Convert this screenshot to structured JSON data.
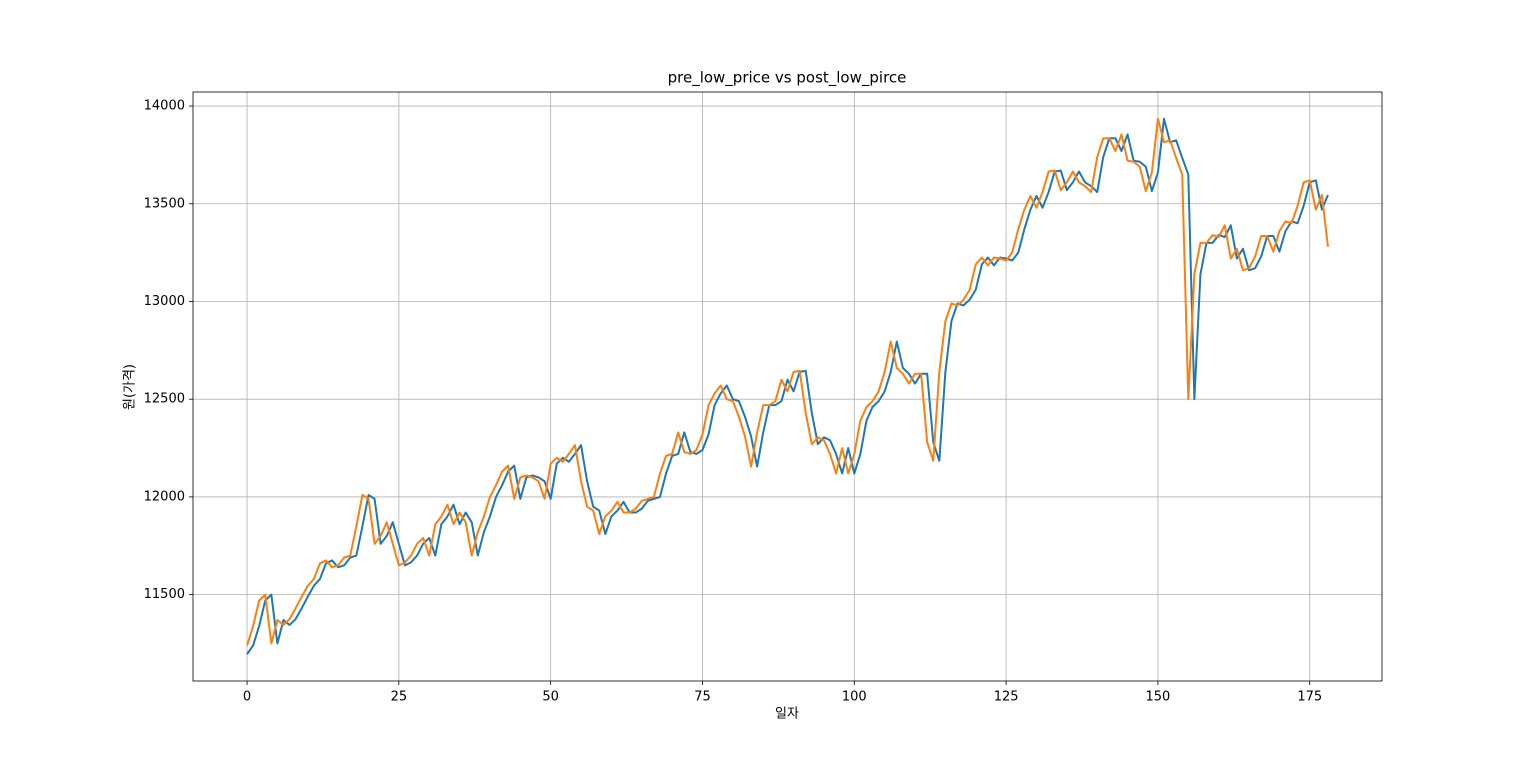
{
  "chart_data": {
    "type": "line",
    "title": "pre_low_price vs post_low_pirce",
    "x_label": "일자",
    "y_label": "원(가격)",
    "x": [
      0,
      1,
      2,
      3,
      4,
      5,
      6,
      7,
      8,
      9,
      10,
      11,
      12,
      13,
      14,
      15,
      16,
      17,
      18,
      19,
      20,
      21,
      22,
      23,
      24,
      25,
      26,
      27,
      28,
      29,
      30,
      31,
      32,
      33,
      34,
      35,
      36,
      37,
      38,
      39,
      40,
      41,
      42,
      43,
      44,
      45,
      46,
      47,
      48,
      49,
      50,
      51,
      52,
      53,
      54,
      55,
      56,
      57,
      58,
      59,
      60,
      61,
      62,
      63,
      64,
      65,
      66,
      67,
      68,
      69,
      70,
      71,
      72,
      73,
      74,
      75,
      76,
      77,
      78,
      79,
      80,
      81,
      82,
      83,
      84,
      85,
      86,
      87,
      88,
      89,
      90,
      91,
      92,
      93,
      94,
      95,
      96,
      97,
      98,
      99,
      100,
      101,
      102,
      103,
      104,
      105,
      106,
      107,
      108,
      109,
      110,
      111,
      112,
      113,
      114,
      115,
      116,
      117,
      118,
      119,
      120,
      121,
      122,
      123,
      124,
      125,
      126,
      127,
      128,
      129,
      130,
      131,
      132,
      133,
      134,
      135,
      136,
      137,
      138,
      139,
      140,
      141,
      142,
      143,
      144,
      145,
      146,
      147,
      148,
      149,
      150,
      151,
      152,
      153,
      154,
      155,
      156,
      157,
      158,
      159,
      160,
      161,
      162,
      163,
      164,
      165,
      166,
      167,
      168,
      169,
      170,
      171,
      172,
      173,
      174,
      175,
      176,
      177,
      178
    ],
    "series": [
      {
        "color": "#1f77b4",
        "values": [
          11195,
          11240,
          11340,
          11470,
          11500,
          11250,
          11370,
          11345,
          11375,
          11430,
          11490,
          11545,
          11580,
          11660,
          11675,
          11640,
          11650,
          11690,
          11700,
          11850,
          12010,
          11990,
          11760,
          11800,
          11870,
          11760,
          11650,
          11665,
          11700,
          11760,
          11790,
          11700,
          11860,
          11900,
          11960,
          11860,
          11920,
          11870,
          11700,
          11820,
          11900,
          12000,
          12060,
          12130,
          12160,
          11990,
          12100,
          12110,
          12100,
          12080,
          11990,
          12170,
          12200,
          12180,
          12220,
          12265,
          12080,
          11950,
          11930,
          11810,
          11900,
          11930,
          11975,
          11920,
          11920,
          11940,
          11980,
          11990,
          12000,
          12120,
          12210,
          12220,
          12330,
          12230,
          12220,
          12240,
          12320,
          12470,
          12530,
          12570,
          12500,
          12490,
          12410,
          12310,
          12155,
          12330,
          12470,
          12470,
          12490,
          12600,
          12540,
          12640,
          12645,
          12430,
          12270,
          12305,
          12290,
          12220,
          12120,
          12250,
          12120,
          12220,
          12390,
          12460,
          12490,
          12540,
          12640,
          12795,
          12660,
          12630,
          12580,
          12630,
          12630,
          12280,
          12185,
          12640,
          12900,
          12990,
          12980,
          13010,
          13060,
          13190,
          13225,
          13185,
          13225,
          13220,
          13210,
          13250,
          13370,
          13470,
          13540,
          13480,
          13560,
          13665,
          13670,
          13570,
          13610,
          13665,
          13610,
          13590,
          13560,
          13740,
          13835,
          13835,
          13770,
          13855,
          13720,
          13715,
          13690,
          13565,
          13660,
          13935,
          13815,
          13825,
          13735,
          13650,
          12500,
          13140,
          13300,
          13300,
          13340,
          13330,
          13390,
          13220,
          13270,
          13160,
          13170,
          13230,
          13335,
          13335,
          13255,
          13360,
          13410,
          13400,
          13490,
          13610,
          13620,
          13470,
          13545
        ]
      },
      {
        "color": "#ff7f0e",
        "values": [
          11240,
          11340,
          11470,
          11500,
          11250,
          11370,
          11345,
          11375,
          11430,
          11490,
          11545,
          11580,
          11660,
          11675,
          11640,
          11650,
          11690,
          11700,
          11850,
          12010,
          11990,
          11760,
          11800,
          11870,
          11760,
          11650,
          11665,
          11700,
          11760,
          11790,
          11700,
          11860,
          11900,
          11960,
          11860,
          11920,
          11870,
          11700,
          11820,
          11900,
          12000,
          12060,
          12130,
          12160,
          11990,
          12100,
          12110,
          12100,
          12080,
          11990,
          12170,
          12200,
          12180,
          12220,
          12265,
          12080,
          11950,
          11930,
          11810,
          11900,
          11930,
          11975,
          11920,
          11920,
          11940,
          11980,
          11990,
          12000,
          12120,
          12210,
          12220,
          12330,
          12230,
          12220,
          12240,
          12320,
          12470,
          12530,
          12570,
          12500,
          12490,
          12410,
          12310,
          12155,
          12330,
          12470,
          12470,
          12490,
          12600,
          12540,
          12640,
          12645,
          12430,
          12270,
          12305,
          12290,
          12220,
          12120,
          12250,
          12120,
          12220,
          12390,
          12460,
          12490,
          12540,
          12640,
          12795,
          12660,
          12630,
          12580,
          12630,
          12630,
          12280,
          12185,
          12640,
          12900,
          12990,
          12980,
          13010,
          13060,
          13190,
          13225,
          13185,
          13225,
          13220,
          13210,
          13250,
          13370,
          13470,
          13540,
          13480,
          13560,
          13665,
          13670,
          13570,
          13610,
          13665,
          13610,
          13590,
          13560,
          13740,
          13835,
          13835,
          13770,
          13855,
          13720,
          13715,
          13690,
          13565,
          13660,
          13935,
          13815,
          13825,
          13735,
          13650,
          12500,
          13140,
          13300,
          13300,
          13340,
          13330,
          13390,
          13220,
          13270,
          13160,
          13170,
          13230,
          13335,
          13335,
          13255,
          13360,
          13410,
          13400,
          13490,
          13610,
          13620,
          13470,
          13545,
          13280
        ]
      }
    ],
    "xlim": [
      -8.9,
      186.9
    ],
    "ylim": [
      11058,
      14072
    ],
    "xticks": [
      0,
      25,
      50,
      75,
      100,
      125,
      150,
      175
    ],
    "yticks": [
      11500,
      12000,
      12500,
      13000,
      13500,
      14000
    ],
    "grid": true
  }
}
